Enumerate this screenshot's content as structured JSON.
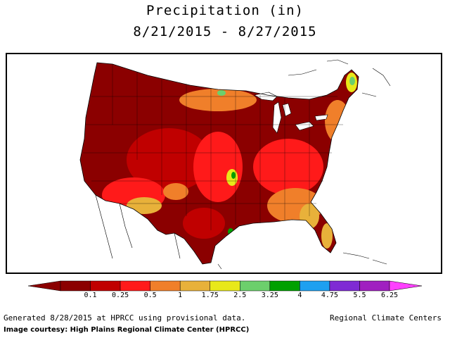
{
  "title": {
    "line1": "Precipitation (in)",
    "line2": "8/21/2015 - 8/27/2015"
  },
  "legend": {
    "bins": [
      {
        "label": "0.1",
        "color": "#8b0000"
      },
      {
        "label": "0.25",
        "color": "#c00000"
      },
      {
        "label": "0.5",
        "color": "#ff1a1a"
      },
      {
        "label": "1",
        "color": "#f07f2a"
      },
      {
        "label": "1.75",
        "color": "#e8b13a"
      },
      {
        "label": "2.5",
        "color": "#e8e81a"
      },
      {
        "label": "3.25",
        "color": "#6ccf6c"
      },
      {
        "label": "4",
        "color": "#00a000"
      },
      {
        "label": "4.75",
        "color": "#1ea0f0"
      },
      {
        "label": "5.5",
        "color": "#7f2ad4"
      },
      {
        "label": "6.25",
        "color": "#a020c0"
      }
    ],
    "left_arrow_color": "#8b0000",
    "right_arrow_color": "#ff40ff"
  },
  "footer": {
    "generated": "Generated 8/28/2015 at HPRCC using provisional data.",
    "organization": "Regional Climate Centers",
    "credit": "Image courtesy: High Plains Regional Climate Center (HPRCC)"
  },
  "map_colors": {
    "dry": "#8b0000",
    "low": "#c00000",
    "mid": "#ff1a1a",
    "orange": "#f07f2a",
    "amber": "#e8b13a",
    "yellow": "#e8e81a",
    "green": "#6ccf6c",
    "dark_green": "#00a000",
    "blue": "#1ea0f0"
  }
}
